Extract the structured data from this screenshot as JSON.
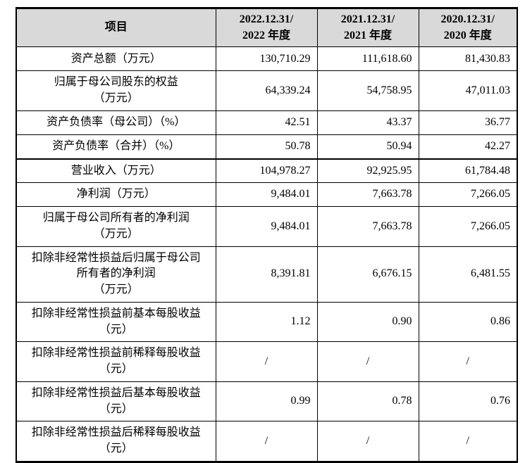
{
  "table": {
    "name": "key-financials-summary",
    "columns": [
      "项目",
      "2022.12.31/\n2022 年度",
      "2021.12.31/\n2021 年度",
      "2020.12.31/\n2020 年度"
    ],
    "rows": [
      {
        "label": "资产总额（万元）",
        "values": [
          "130,710.29",
          "111,618.60",
          "81,430.83"
        ]
      },
      {
        "label": "归属于母公司股东的权益\n（万元）",
        "values": [
          "64,339.24",
          "54,758.95",
          "47,011.03"
        ]
      },
      {
        "label": "资产负债率（母公司）（%）",
        "values": [
          "42.51",
          "43.37",
          "36.77"
        ]
      },
      {
        "label": "资产负债率（合并）（%）",
        "values": [
          "50.78",
          "50.94",
          "42.27"
        ]
      },
      {
        "label": "营业收入（万元）",
        "values": [
          "104,978.27",
          "92,925.95",
          "61,784.48"
        ]
      },
      {
        "label": "净利润（万元）",
        "values": [
          "9,484.01",
          "7,663.78",
          "7,266.05"
        ]
      },
      {
        "label": "归属于母公司所有者的净利润\n（万元）",
        "values": [
          "9,484.01",
          "7,663.78",
          "7,266.05"
        ]
      },
      {
        "label": "扣除非经常性损益后归属于母公司\n所有者的净利润\n（万元）",
        "values": [
          "8,391.81",
          "6,676.15",
          "6,481.55"
        ]
      },
      {
        "label": "扣除非经常性损益前基本每股收益\n（元）",
        "values": [
          "1.12",
          "0.90",
          "0.86"
        ]
      },
      {
        "label": "扣除非经常性损益前稀释每股收益\n（元）",
        "values": [
          "/",
          "/",
          "/"
        ]
      },
      {
        "label": "扣除非经常性损益后基本每股收益\n（元）",
        "values": [
          "0.99",
          "0.78",
          "0.76"
        ]
      },
      {
        "label": "扣除非经常性损益后稀释每股收益\n（元）",
        "values": [
          "/",
          "/",
          "/"
        ]
      }
    ]
  },
  "colors": {
    "header_bg": "#d9d9d9",
    "border": "#000000",
    "text": "#000000"
  }
}
